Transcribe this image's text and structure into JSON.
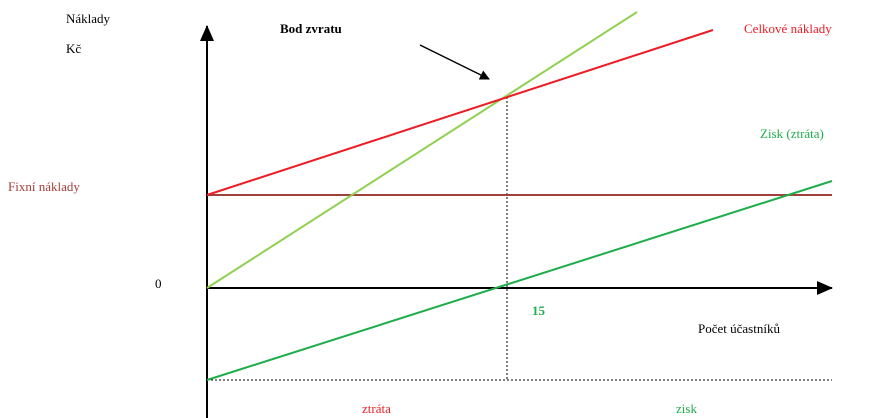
{
  "labels": {
    "y_axis_line1": "Náklady",
    "y_axis_line2": "Kč",
    "break_even": "Bod zvratu",
    "total_costs": "Celkové náklady",
    "profit_loss": "Zisk (ztráta)",
    "fixed_costs": "Fixní náklady",
    "origin": "0",
    "break_even_x": "15",
    "x_axis": "Počet účastníků",
    "loss": "ztráta",
    "profit": "zisk"
  }
}
